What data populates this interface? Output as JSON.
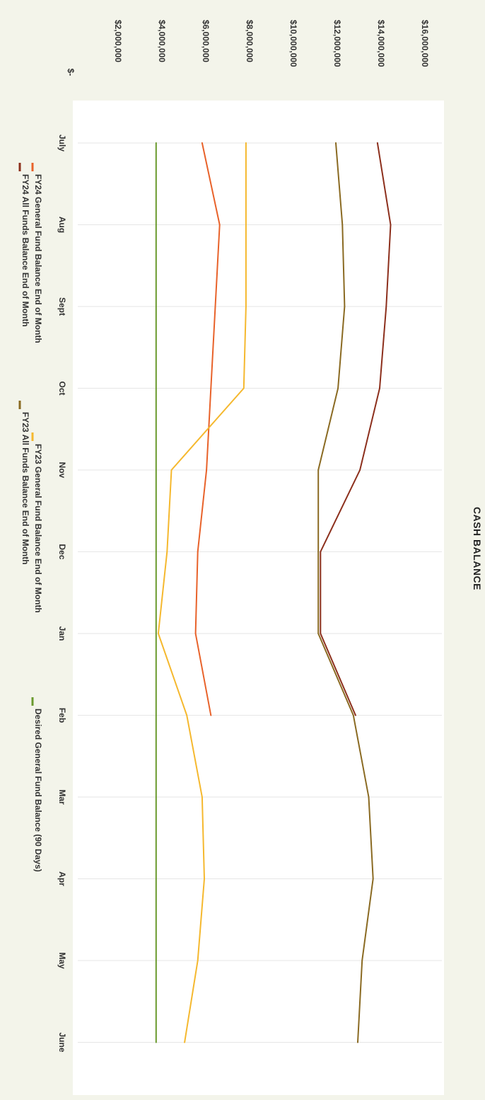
{
  "chart_data": {
    "type": "line",
    "title": "CASH BALANCE",
    "orientation": "rotated 90° clockwise (page is sideways)",
    "categories": [
      "July",
      "Aug",
      "Sept",
      "Oct",
      "Nov",
      "Dec",
      "Jan",
      "Feb",
      "Mar",
      "Apr",
      "May",
      "June"
    ],
    "y_tick_labels": [
      "$-",
      "$2,000,000",
      "$4,000,000",
      "$6,000,000",
      "$8,000,000",
      "$10,000,000",
      "$12,000,000",
      "$14,000,000",
      "$16,000,000"
    ],
    "ylim": [
      0,
      16000000
    ],
    "grid": "vertical gridlines at each month",
    "legend_position": "bottom",
    "series": [
      {
        "name": "FY24 General Fund Balance End of Month",
        "color": "#e8622a",
        "values": [
          5900000,
          6700000,
          6500000,
          6300000,
          6100000,
          5700000,
          5600000,
          6300000,
          null,
          null,
          null,
          null
        ]
      },
      {
        "name": "FY23 General Fund Balance End of Month",
        "color": "#f5b82e",
        "values": [
          7900000,
          7900000,
          7900000,
          7800000,
          4500000,
          4300000,
          3900000,
          5200000,
          5900000,
          6000000,
          5700000,
          5100000
        ]
      },
      {
        "name": "Desired General Fund Balance (90 Days)",
        "color": "#6a9a2e",
        "values": [
          3800000,
          3800000,
          3800000,
          3800000,
          3800000,
          3800000,
          3800000,
          3800000,
          3800000,
          3800000,
          3800000,
          3800000
        ]
      },
      {
        "name": "FY24 All Funds Balance End of Month",
        "color": "#8c2f1c",
        "values": [
          13900000,
          14500000,
          14300000,
          14000000,
          13100000,
          11300000,
          11300000,
          12900000,
          null,
          null,
          null,
          null
        ]
      },
      {
        "name": "FY23 All Funds Balance End of Month",
        "color": "#8a6a22",
        "values": [
          12000000,
          12300000,
          12400000,
          12100000,
          11200000,
          11200000,
          11200000,
          12800000,
          13500000,
          13700000,
          13200000,
          13000000
        ]
      }
    ]
  }
}
